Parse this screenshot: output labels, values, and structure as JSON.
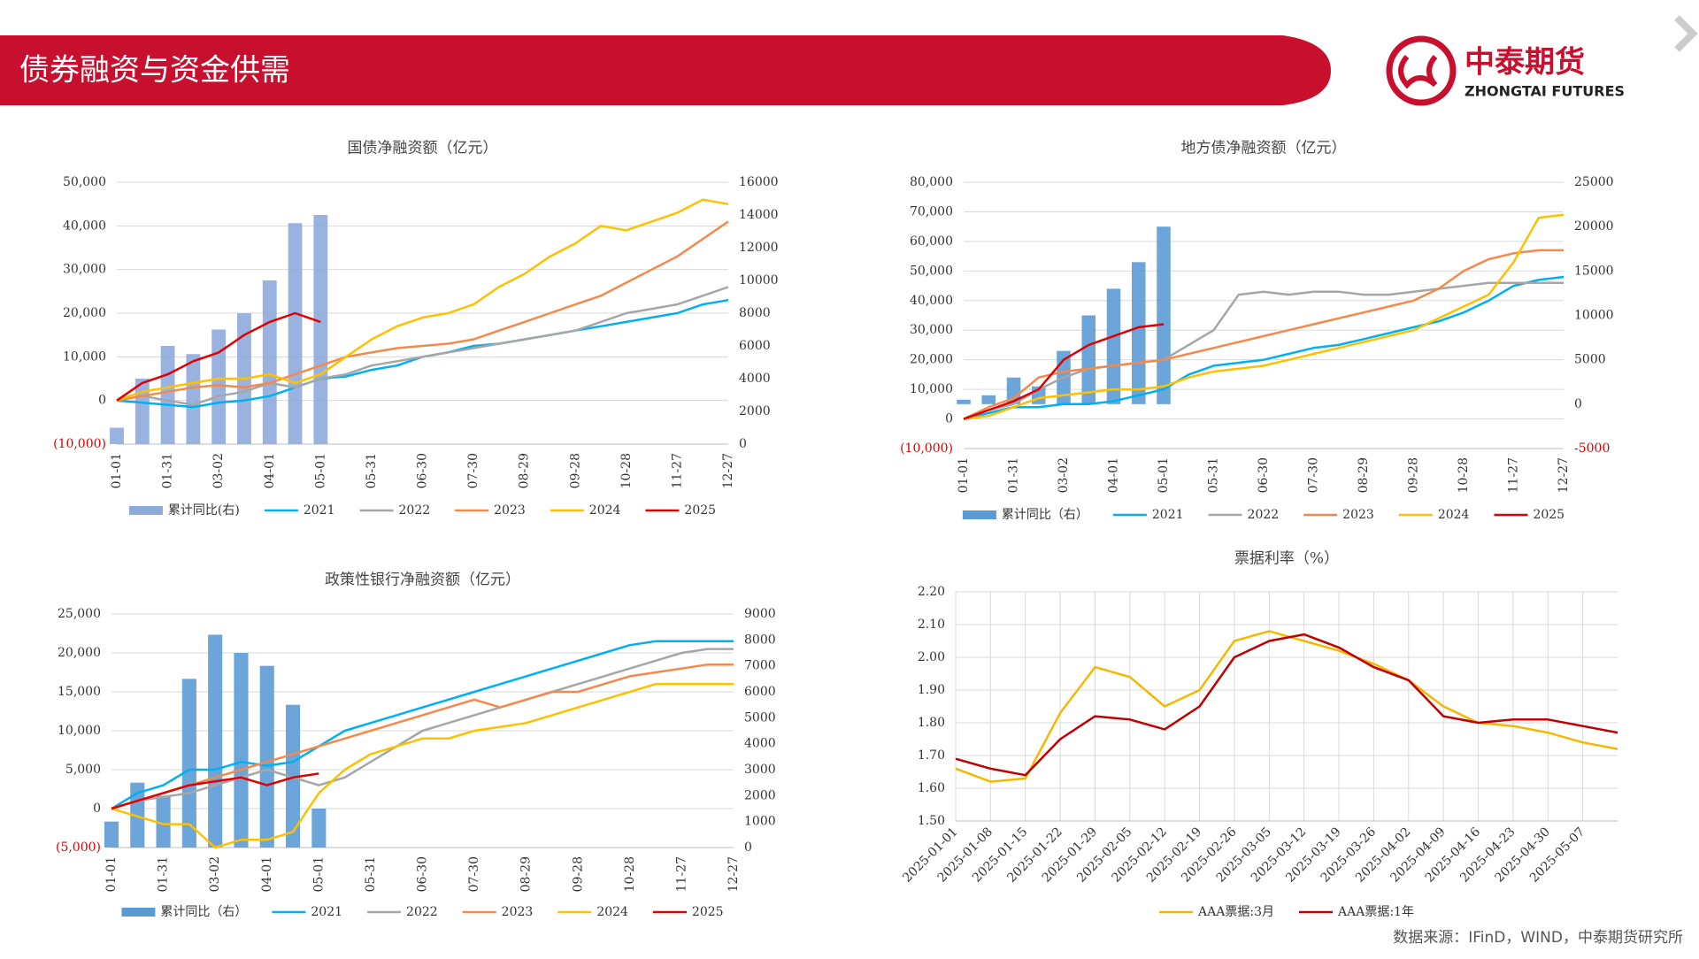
{
  "header": {
    "title": "债券融资与资金供需",
    "logo_name": "中泰期货",
    "logo_sub": "ZHONGTAI FUTURES"
  },
  "source": "数据来源：IFinD，WIND，中泰期货研究所",
  "chart_data": [
    {
      "type": "bar-line",
      "title": "国债净融资额（亿元）",
      "categories": [
        "01-01",
        null,
        "01-31",
        null,
        "03-02",
        null,
        "04-01",
        null,
        "05-01",
        null,
        "05-31",
        null,
        "06-30",
        null,
        "07-30",
        null,
        "08-29",
        null,
        "09-28",
        null,
        "10-28",
        null,
        "11-27",
        null,
        "12-27"
      ],
      "ylim": [
        -10000,
        50000
      ],
      "yticks": [
        {
          "value": -10000,
          "label": "(10,000)"
        },
        0,
        {
          "value": 10000,
          "label": "10,000"
        },
        {
          "value": 20000,
          "label": "20,000"
        },
        {
          "value": 30000,
          "label": "30,000"
        },
        {
          "value": 40000,
          "label": "40,000"
        },
        {
          "value": 50000,
          "label": "50,000"
        }
      ],
      "y2lim": [
        0,
        16000
      ],
      "y2ticks": [
        0,
        2000,
        4000,
        6000,
        8000,
        10000,
        12000,
        14000,
        16000
      ],
      "grid": true,
      "negative_tick_color": "#e00000",
      "series": [
        {
          "name": "累计同比(右)",
          "type": "bar",
          "axis": "y2",
          "color": "#8eaadb",
          "values": [
            1000,
            4000,
            6000,
            5500,
            7000,
            8000,
            10000,
            13500,
            14000,
            null,
            null,
            null,
            null,
            null,
            null,
            null,
            null,
            null,
            null,
            null,
            null,
            null,
            null,
            null,
            null
          ]
        },
        {
          "name": "2021",
          "type": "line",
          "color": "#00b0f0",
          "values": [
            0,
            -500,
            -1000,
            -1500,
            -500,
            0,
            1000,
            3000,
            5000,
            5500,
            7000,
            8000,
            10000,
            11000,
            12500,
            13000,
            14000,
            15000,
            16000,
            17000,
            18000,
            19000,
            20000,
            22000,
            23000
          ]
        },
        {
          "name": "2022",
          "type": "line",
          "color": "#a6a6a6",
          "values": [
            0,
            1000,
            0,
            -1000,
            1000,
            2000,
            4000,
            3000,
            5000,
            6000,
            8000,
            9000,
            10000,
            11000,
            12000,
            13000,
            14000,
            15000,
            16000,
            18000,
            20000,
            21000,
            22000,
            24000,
            26000
          ]
        },
        {
          "name": "2023",
          "type": "line",
          "color": "#f4894b",
          "values": [
            0,
            1000,
            2000,
            3000,
            3500,
            3000,
            4000,
            6000,
            8000,
            10000,
            11000,
            12000,
            12500,
            13000,
            14000,
            16000,
            18000,
            20000,
            22000,
            24000,
            27000,
            30000,
            33000,
            37000,
            41000
          ]
        },
        {
          "name": "2024",
          "type": "line",
          "color": "#ffc000",
          "values": [
            0,
            2000,
            3000,
            4000,
            5000,
            5000,
            6000,
            4000,
            6000,
            10000,
            14000,
            17000,
            19000,
            20000,
            22000,
            26000,
            29000,
            33000,
            36000,
            40000,
            39000,
            41000,
            43000,
            46000,
            45000
          ]
        },
        {
          "name": "2025",
          "type": "line",
          "color": "#e00000",
          "values": [
            0,
            4000,
            6000,
            9000,
            11000,
            15000,
            18000,
            20000,
            18000,
            null,
            null,
            null,
            null,
            null,
            null,
            null,
            null,
            null,
            null,
            null,
            null,
            null,
            null,
            null,
            null
          ]
        }
      ]
    },
    {
      "type": "bar-line",
      "title": "地方债净融资额（亿元）",
      "categories": [
        "01-01",
        null,
        "01-31",
        null,
        "03-02",
        null,
        "04-01",
        null,
        "05-01",
        null,
        "05-31",
        null,
        "06-30",
        null,
        "07-30",
        null,
        "08-29",
        null,
        "09-28",
        null,
        "10-28",
        null,
        "11-27",
        null,
        "12-27"
      ],
      "ylim": [
        -10000,
        80000
      ],
      "yticks": [
        {
          "value": -10000,
          "label": "(10,000)"
        },
        0,
        {
          "value": 10000,
          "label": "10,000"
        },
        {
          "value": 20000,
          "label": "20,000"
        },
        {
          "value": 30000,
          "label": "30,000"
        },
        {
          "value": 40000,
          "label": "40,000"
        },
        {
          "value": 50000,
          "label": "50,000"
        },
        {
          "value": 60000,
          "label": "60,000"
        },
        {
          "value": 70000,
          "label": "70,000"
        },
        {
          "value": 80000,
          "label": "80,000"
        }
      ],
      "y2lim": [
        -5000,
        25000
      ],
      "y2ticks": [
        -5000,
        0,
        5000,
        10000,
        15000,
        20000,
        25000
      ],
      "grid": true,
      "negative_tick_color": "#e00000",
      "series": [
        {
          "name": "累计同比（右）",
          "type": "bar",
          "axis": "y2",
          "color": "#5b9bd5",
          "values": [
            500,
            1000,
            3000,
            2000,
            6000,
            10000,
            13000,
            16000,
            20000,
            null,
            null,
            null,
            null,
            null,
            null,
            null,
            null,
            null,
            null,
            null,
            null,
            null,
            null,
            null,
            null
          ]
        },
        {
          "name": "2021",
          "type": "line",
          "color": "#00b0f0",
          "values": [
            0,
            2000,
            4000,
            4000,
            5000,
            5000,
            6000,
            8000,
            10000,
            15000,
            18000,
            19000,
            20000,
            22000,
            24000,
            25000,
            27000,
            29000,
            31000,
            33000,
            36000,
            40000,
            45000,
            47000,
            48000
          ]
        },
        {
          "name": "2022",
          "type": "line",
          "color": "#a6a6a6",
          "values": [
            0,
            3000,
            5000,
            10000,
            14000,
            17000,
            18000,
            19000,
            20000,
            25000,
            30000,
            42000,
            43000,
            42000,
            43000,
            43000,
            42000,
            42000,
            43000,
            44000,
            45000,
            46000,
            46000,
            46000,
            46000
          ]
        },
        {
          "name": "2023",
          "type": "line",
          "color": "#f4894b",
          "values": [
            0,
            4000,
            7000,
            14000,
            16000,
            17000,
            18000,
            19000,
            20000,
            22000,
            24000,
            26000,
            28000,
            30000,
            32000,
            34000,
            36000,
            38000,
            40000,
            44000,
            50000,
            54000,
            56000,
            57000,
            57000
          ]
        },
        {
          "name": "2024",
          "type": "line",
          "color": "#ffc000",
          "values": [
            0,
            1000,
            4000,
            7000,
            8000,
            9000,
            10000,
            10000,
            11000,
            14000,
            16000,
            17000,
            18000,
            20000,
            22000,
            24000,
            26000,
            28000,
            30000,
            34000,
            38000,
            42000,
            53000,
            68000,
            69000
          ]
        },
        {
          "name": "2025",
          "type": "line",
          "color": "#e00000",
          "values": [
            0,
            3000,
            6000,
            10000,
            20000,
            25000,
            28000,
            31000,
            32000,
            null,
            null,
            null,
            null,
            null,
            null,
            null,
            null,
            null,
            null,
            null,
            null,
            null,
            null,
            null,
            null
          ]
        }
      ]
    },
    {
      "type": "bar-line",
      "title": "政策性银行净融资额（亿元）",
      "categories": [
        "01-01",
        null,
        "01-31",
        null,
        "03-02",
        null,
        "04-01",
        null,
        "05-01",
        null,
        "05-31",
        null,
        "06-30",
        null,
        "07-30",
        null,
        "08-29",
        null,
        "09-28",
        null,
        "10-28",
        null,
        "11-27",
        null,
        "12-27"
      ],
      "ylim": [
        -5000,
        25000
      ],
      "yticks": [
        {
          "value": -5000,
          "label": "(5,000)"
        },
        0,
        {
          "value": 5000,
          "label": "5,000"
        },
        {
          "value": 10000,
          "label": "10,000"
        },
        {
          "value": 15000,
          "label": "15,000"
        },
        {
          "value": 20000,
          "label": "20,000"
        },
        {
          "value": 25000,
          "label": "25,000"
        }
      ],
      "y2lim": [
        0,
        9000
      ],
      "y2ticks": [
        0,
        1000,
        2000,
        3000,
        4000,
        5000,
        6000,
        7000,
        8000,
        9000
      ],
      "grid": true,
      "negative_tick_color": "#e00000",
      "series": [
        {
          "name": "累计同比（右）",
          "type": "bar",
          "axis": "y2",
          "color": "#5b9bd5",
          "values": [
            1000,
            2500,
            2000,
            6500,
            8200,
            7500,
            7000,
            5500,
            1500,
            null,
            null,
            null,
            null,
            null,
            null,
            null,
            null,
            null,
            null,
            null,
            null,
            null,
            null,
            null,
            null
          ]
        },
        {
          "name": "2021",
          "type": "line",
          "color": "#00b0f0",
          "values": [
            0,
            2000,
            3000,
            5000,
            5000,
            6000,
            5500,
            6000,
            8000,
            10000,
            11000,
            12000,
            13000,
            14000,
            15000,
            16000,
            17000,
            18000,
            19000,
            20000,
            21000,
            21500,
            21500,
            21500,
            21500
          ]
        },
        {
          "name": "2022",
          "type": "line",
          "color": "#a6a6a6",
          "values": [
            0,
            1000,
            1500,
            2000,
            3000,
            4000,
            5000,
            4000,
            3000,
            4000,
            6000,
            8000,
            10000,
            11000,
            12000,
            13000,
            14000,
            15000,
            16000,
            17000,
            18000,
            19000,
            20000,
            20500,
            20500
          ]
        },
        {
          "name": "2023",
          "type": "line",
          "color": "#f4894b",
          "values": [
            0,
            1000,
            2000,
            3000,
            4000,
            5000,
            6000,
            7000,
            8000,
            9000,
            10000,
            11000,
            12000,
            13000,
            14000,
            13000,
            14000,
            15000,
            15000,
            16000,
            17000,
            17500,
            18000,
            18500,
            18500
          ]
        },
        {
          "name": "2024",
          "type": "line",
          "color": "#ffc000",
          "values": [
            0,
            -1000,
            -2000,
            -2000,
            -5000,
            -4000,
            -4000,
            -3000,
            2000,
            5000,
            7000,
            8000,
            9000,
            9000,
            10000,
            10500,
            11000,
            12000,
            13000,
            14000,
            15000,
            16000,
            16000,
            16000,
            16000
          ]
        },
        {
          "name": "2025",
          "type": "line",
          "color": "#e00000",
          "values": [
            0,
            1000,
            2000,
            3000,
            3500,
            4000,
            3000,
            4000,
            4500,
            null,
            null,
            null,
            null,
            null,
            null,
            null,
            null,
            null,
            null,
            null,
            null,
            null,
            null,
            null,
            null
          ]
        }
      ]
    },
    {
      "type": "line",
      "title": "票据利率（%）",
      "categories": [
        "2025-01-01",
        "2025-01-08",
        "2025-01-15",
        "2025-01-22",
        "2025-01-29",
        "2025-02-05",
        "2025-02-12",
        "2025-02-19",
        "2025-02-26",
        "2025-03-05",
        "2025-03-12",
        "2025-03-19",
        "2025-03-26",
        "2025-04-02",
        "2025-04-09",
        "2025-04-16",
        "2025-04-23",
        "2025-04-30",
        "2025-05-07",
        null
      ],
      "ylim": [
        1.5,
        2.2
      ],
      "yticks": [
        {
          "value": 1.5,
          "label": "1.50"
        },
        {
          "value": 1.6,
          "label": "1.60"
        },
        {
          "value": 1.7,
          "label": "1.70"
        },
        {
          "value": 1.8,
          "label": "1.80"
        },
        {
          "value": 1.9,
          "label": "1.90"
        },
        {
          "value": 2.0,
          "label": "2.00"
        },
        {
          "value": 2.1,
          "label": "2.10"
        },
        {
          "value": 2.2,
          "label": "2.20"
        }
      ],
      "grid": true,
      "xgrid": true,
      "series": [
        {
          "name": "AAA票据:3月",
          "type": "line",
          "color": "#f5b800",
          "values": [
            1.66,
            1.62,
            1.63,
            1.83,
            1.97,
            1.94,
            1.85,
            1.9,
            2.05,
            2.08,
            2.05,
            2.02,
            1.98,
            1.93,
            1.85,
            1.8,
            1.79,
            1.77,
            1.74,
            1.72
          ]
        },
        {
          "name": "AAA票据:1年",
          "type": "line",
          "color": "#c00000",
          "values": [
            1.69,
            1.66,
            1.64,
            1.75,
            1.82,
            1.81,
            1.78,
            1.85,
            2.0,
            2.05,
            2.07,
            2.03,
            1.97,
            1.93,
            1.82,
            1.8,
            1.81,
            1.81,
            1.79,
            1.77
          ]
        }
      ]
    }
  ]
}
